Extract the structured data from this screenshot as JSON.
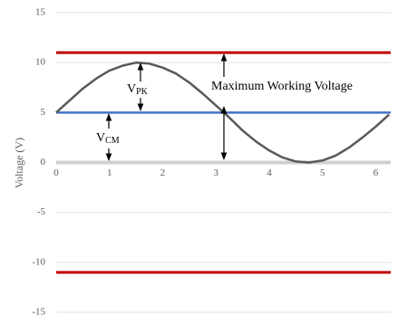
{
  "chart_data": {
    "type": "line",
    "y_label": "Voltage (V)",
    "xlim": [
      0,
      6.28
    ],
    "ylim": [
      -15,
      15
    ],
    "xticks": [
      0,
      1,
      2,
      3,
      4,
      5,
      6
    ],
    "yticks": [
      -15,
      -10,
      -5,
      0,
      5,
      10,
      15
    ],
    "grid": true,
    "series": [
      {
        "color": "#c00000",
        "x": [
          0,
          6.28
        ],
        "values": [
          11,
          11
        ]
      },
      {
        "color": "#c00000",
        "x": [
          0,
          6.28
        ],
        "values": [
          -11,
          -11
        ]
      },
      {
        "color": "#4472c4",
        "x": [
          0,
          6.28
        ],
        "values": [
          5,
          5
        ]
      },
      {
        "color": "#595959",
        "x": [
          0,
          0.25,
          0.5,
          0.75,
          1,
          1.25,
          1.5,
          1.75,
          2,
          2.25,
          2.5,
          2.75,
          3,
          3.25,
          3.5,
          3.75,
          4,
          4.25,
          4.5,
          4.75,
          5,
          5.25,
          5.5,
          5.75,
          6,
          6.25
        ],
        "values": [
          5,
          6.2,
          7.4,
          8.4,
          9.2,
          9.7,
          10,
          9.9,
          9.5,
          8.9,
          8,
          6.9,
          5.7,
          4.5,
          3.2,
          2.1,
          1.2,
          0.5,
          0.1,
          0,
          0.2,
          0.7,
          1.5,
          2.5,
          3.6,
          4.8
        ]
      }
    ],
    "annotations": [
      {
        "text": "V",
        "sub": "PK"
      },
      {
        "text": "V",
        "sub": "CM"
      },
      {
        "text": "Maximum Working Voltage"
      }
    ]
  }
}
